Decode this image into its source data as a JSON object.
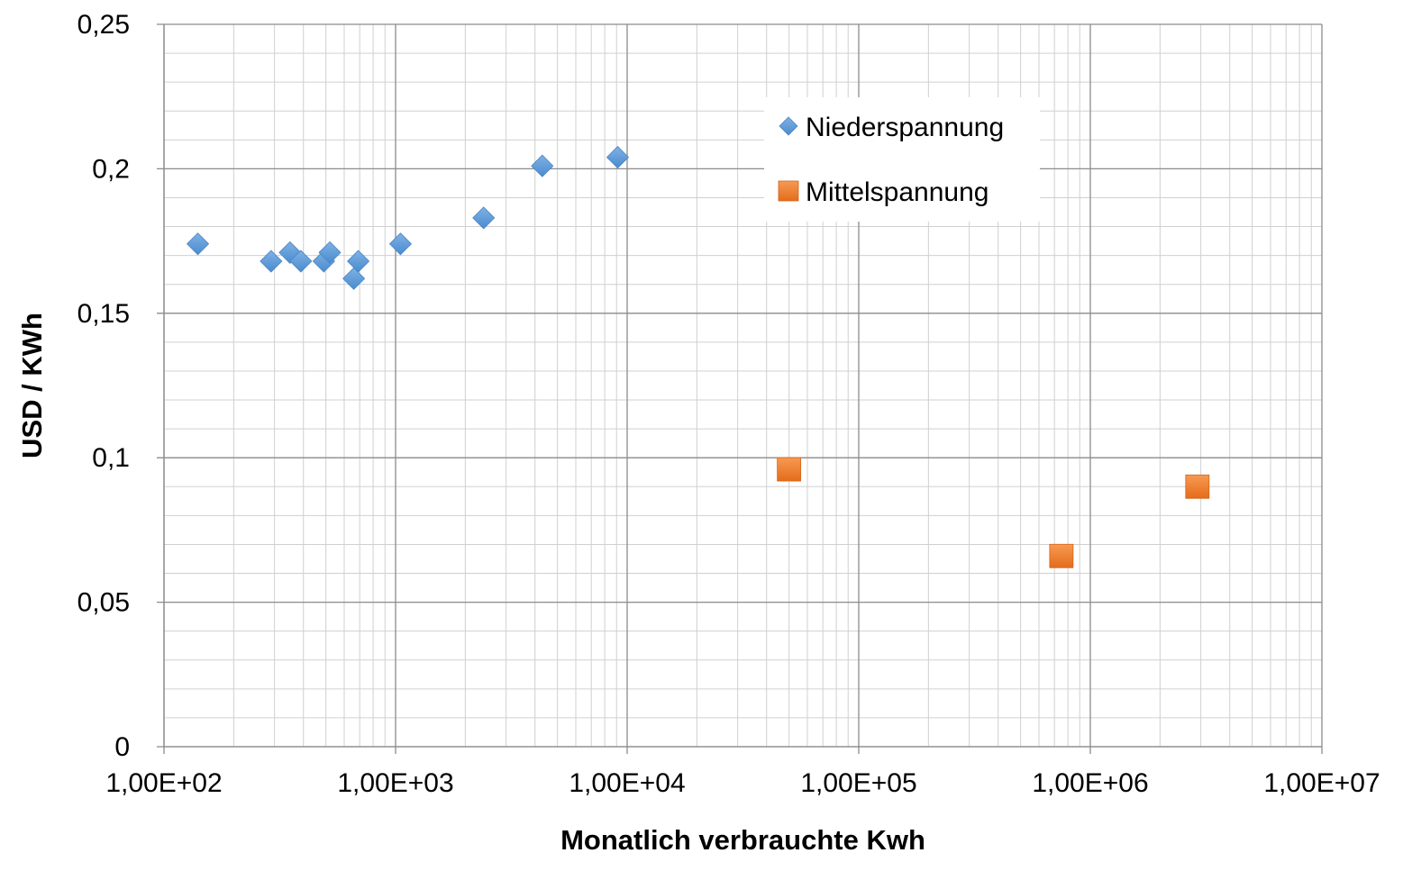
{
  "chart_data": {
    "type": "scatter",
    "xscale": "log",
    "xlim": [
      100,
      10000000
    ],
    "ylim": [
      0,
      0.25
    ],
    "x_ticks": [
      100,
      1000,
      10000,
      100000,
      1000000,
      10000000
    ],
    "x_tick_labels": [
      "1,00E+02",
      "1,00E+03",
      "1,00E+04",
      "1,00E+05",
      "1,00E+06",
      "1,00E+07"
    ],
    "y_ticks": [
      0,
      0.05,
      0.1,
      0.15,
      0.2,
      0.25
    ],
    "y_tick_labels": [
      "0",
      "0,05",
      "0,1",
      "0,15",
      "0,2",
      "0,25"
    ],
    "xlabel": "Monatlich verbrauchte Kwh",
    "ylabel": "USD / KWh",
    "grid": true,
    "legend_position": "top-right",
    "series": [
      {
        "name": "Niederspannung",
        "marker": "diamond",
        "color": "#5b9bd5",
        "points": [
          {
            "x": 140,
            "y": 0.174
          },
          {
            "x": 290,
            "y": 0.168
          },
          {
            "x": 350,
            "y": 0.171
          },
          {
            "x": 390,
            "y": 0.168
          },
          {
            "x": 490,
            "y": 0.168
          },
          {
            "x": 520,
            "y": 0.171
          },
          {
            "x": 660,
            "y": 0.162
          },
          {
            "x": 690,
            "y": 0.168
          },
          {
            "x": 1050,
            "y": 0.174
          },
          {
            "x": 2400,
            "y": 0.183
          },
          {
            "x": 4300,
            "y": 0.201
          },
          {
            "x": 9100,
            "y": 0.204
          }
        ]
      },
      {
        "name": "Mittelspannung",
        "marker": "square",
        "color": "#ed7d31",
        "points": [
          {
            "x": 50000,
            "y": 0.096
          },
          {
            "x": 750000,
            "y": 0.066
          },
          {
            "x": 2900000,
            "y": 0.09
          }
        ]
      }
    ]
  }
}
